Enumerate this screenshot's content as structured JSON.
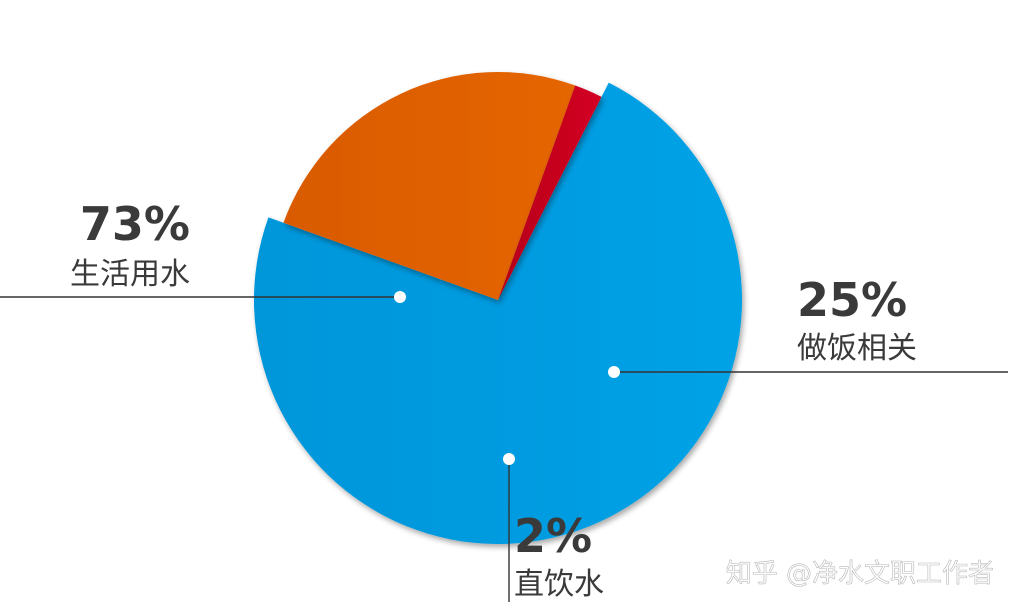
{
  "chart_data": {
    "type": "pie",
    "title": "",
    "slices": [
      {
        "label": "生活用水",
        "value": 73,
        "value_label": "73%",
        "color": "#039be0"
      },
      {
        "label": "做饭相关",
        "value": 25,
        "value_label": "25%",
        "color": "#e06000"
      },
      {
        "label": "直饮水",
        "value": 2,
        "value_label": "2%",
        "color": "#c8001e"
      }
    ],
    "legend": "none"
  },
  "watermark": {
    "text": "知乎 @净水文职工作者"
  }
}
